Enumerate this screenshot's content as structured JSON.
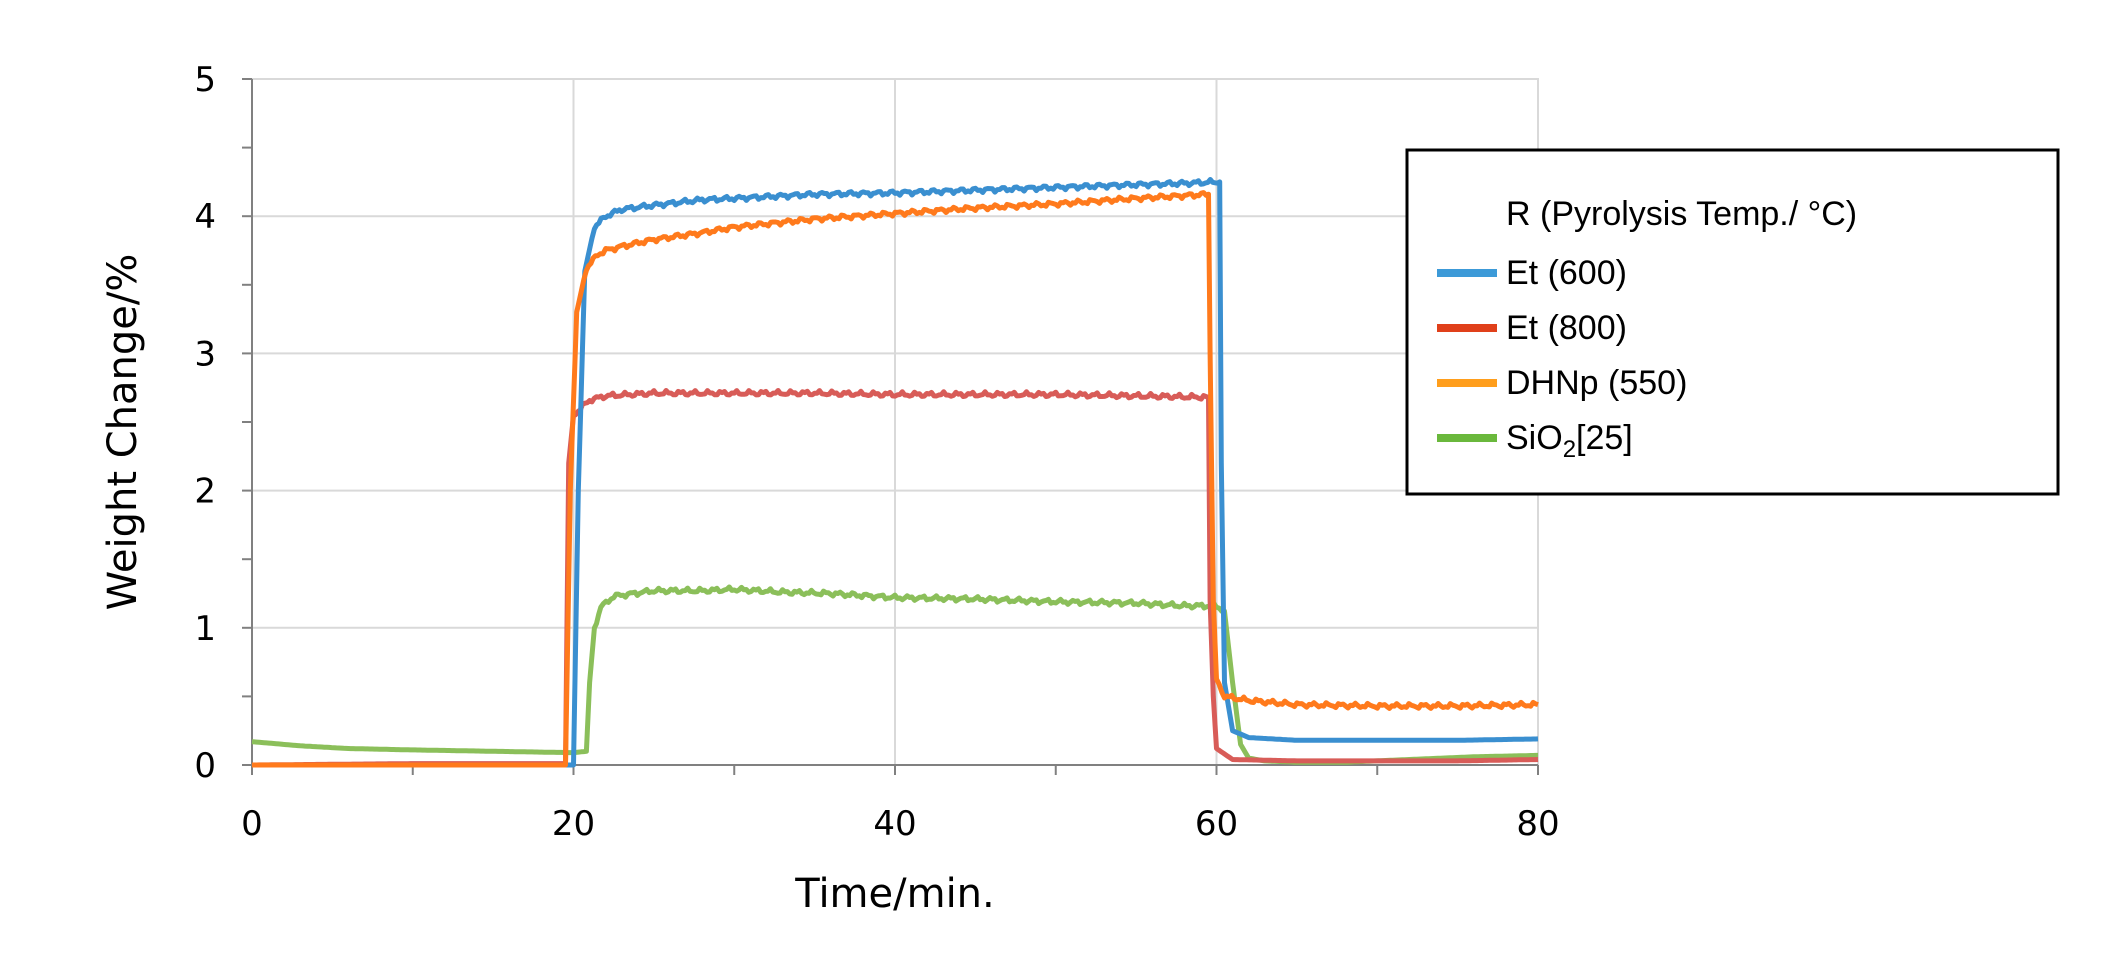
{
  "chart_data": {
    "type": "line",
    "title": "",
    "xlabel": "Time/min.",
    "ylabel": "Weight Change/%",
    "xlim": [
      0,
      80
    ],
    "ylim": [
      0,
      5
    ],
    "x_ticks": [
      0,
      20,
      40,
      60,
      80
    ],
    "y_ticks": [
      0,
      1,
      2,
      3,
      4,
      5
    ],
    "grid": true,
    "legend": {
      "position": "right",
      "title": "R (Pyrolysis Temp./ °C)",
      "entries": [
        {
          "label_main": "Et (600)",
          "label_sub": "",
          "label_tail": ""
        },
        {
          "label_main": "Et (800)",
          "label_sub": "",
          "label_tail": ""
        },
        {
          "label_main": "DHNp (550)",
          "label_sub": "",
          "label_tail": ""
        },
        {
          "label_main": "SiO",
          "label_sub": "2",
          "label_tail": "[25]"
        }
      ]
    },
    "series": [
      {
        "name": "Et (600)",
        "color": "#3a8fd0",
        "legend_color": "#3c9ad8",
        "points": [
          [
            0,
            0
          ],
          [
            19.8,
            0
          ],
          [
            20.0,
            0.0
          ],
          [
            20.3,
            2.0
          ],
          [
            20.7,
            3.6
          ],
          [
            21.3,
            3.92
          ],
          [
            22,
            4.0
          ],
          [
            23,
            4.05
          ],
          [
            25,
            4.08
          ],
          [
            28,
            4.12
          ],
          [
            30,
            4.13
          ],
          [
            35,
            4.16
          ],
          [
            40,
            4.17
          ],
          [
            45,
            4.19
          ],
          [
            50,
            4.21
          ],
          [
            55,
            4.23
          ],
          [
            58,
            4.24
          ],
          [
            60.2,
            4.25
          ],
          [
            60.3,
            2.2
          ],
          [
            60.5,
            0.6
          ],
          [
            61,
            0.25
          ],
          [
            62,
            0.2
          ],
          [
            65,
            0.18
          ],
          [
            70,
            0.18
          ],
          [
            75,
            0.18
          ],
          [
            80,
            0.19
          ]
        ]
      },
      {
        "name": "Et (800)",
        "color": "#d85c58",
        "legend_color": "#e0401a",
        "points": [
          [
            0,
            0
          ],
          [
            10,
            0.01
          ],
          [
            19.5,
            0.01
          ],
          [
            19.7,
            2.2
          ],
          [
            20,
            2.55
          ],
          [
            21,
            2.66
          ],
          [
            22,
            2.69
          ],
          [
            25,
            2.71
          ],
          [
            30,
            2.71
          ],
          [
            35,
            2.71
          ],
          [
            40,
            2.7
          ],
          [
            45,
            2.7
          ],
          [
            50,
            2.7
          ],
          [
            55,
            2.69
          ],
          [
            59.5,
            2.68
          ],
          [
            59.6,
            1.2
          ],
          [
            59.8,
            0.5
          ],
          [
            60,
            0.12
          ],
          [
            61,
            0.04
          ],
          [
            65,
            0.03
          ],
          [
            70,
            0.03
          ],
          [
            75,
            0.03
          ],
          [
            80,
            0.04
          ]
        ]
      },
      {
        "name": "DHNp (550)",
        "color": "#ff7a1c",
        "legend_color": "#ff9e1c",
        "points": [
          [
            0,
            0
          ],
          [
            19.5,
            0
          ],
          [
            19.8,
            2.0
          ],
          [
            20.2,
            3.3
          ],
          [
            20.8,
            3.62
          ],
          [
            21.5,
            3.72
          ],
          [
            22,
            3.75
          ],
          [
            23,
            3.78
          ],
          [
            25,
            3.83
          ],
          [
            28,
            3.88
          ],
          [
            30,
            3.92
          ],
          [
            35,
            3.98
          ],
          [
            40,
            4.02
          ],
          [
            45,
            4.06
          ],
          [
            50,
            4.09
          ],
          [
            55,
            4.13
          ],
          [
            59.5,
            4.16
          ],
          [
            59.6,
            3.0
          ],
          [
            59.8,
            1.2
          ],
          [
            60,
            0.62
          ],
          [
            60.5,
            0.5
          ],
          [
            62,
            0.47
          ],
          [
            65,
            0.44
          ],
          [
            70,
            0.43
          ],
          [
            75,
            0.43
          ],
          [
            80,
            0.44
          ]
        ]
      },
      {
        "name": "SiO2[25]",
        "color": "#8bbf5a",
        "legend_color": "#6ab83c",
        "points": [
          [
            0,
            0.17
          ],
          [
            3,
            0.14
          ],
          [
            6,
            0.12
          ],
          [
            10,
            0.11
          ],
          [
            15,
            0.1
          ],
          [
            20,
            0.09
          ],
          [
            20.8,
            0.1
          ],
          [
            21.0,
            0.6
          ],
          [
            21.3,
            1.0
          ],
          [
            21.7,
            1.15
          ],
          [
            22.5,
            1.23
          ],
          [
            25,
            1.27
          ],
          [
            28,
            1.27
          ],
          [
            30,
            1.28
          ],
          [
            33,
            1.26
          ],
          [
            36,
            1.25
          ],
          [
            40,
            1.22
          ],
          [
            45,
            1.21
          ],
          [
            50,
            1.19
          ],
          [
            55,
            1.18
          ],
          [
            58,
            1.16
          ],
          [
            60,
            1.16
          ],
          [
            60.5,
            1.12
          ],
          [
            61,
            0.6
          ],
          [
            61.5,
            0.15
          ],
          [
            62,
            0.05
          ],
          [
            63,
            0.03
          ],
          [
            65,
            0.02
          ],
          [
            68,
            0.02
          ],
          [
            72,
            0.04
          ],
          [
            76,
            0.06
          ],
          [
            80,
            0.07
          ]
        ]
      }
    ]
  }
}
